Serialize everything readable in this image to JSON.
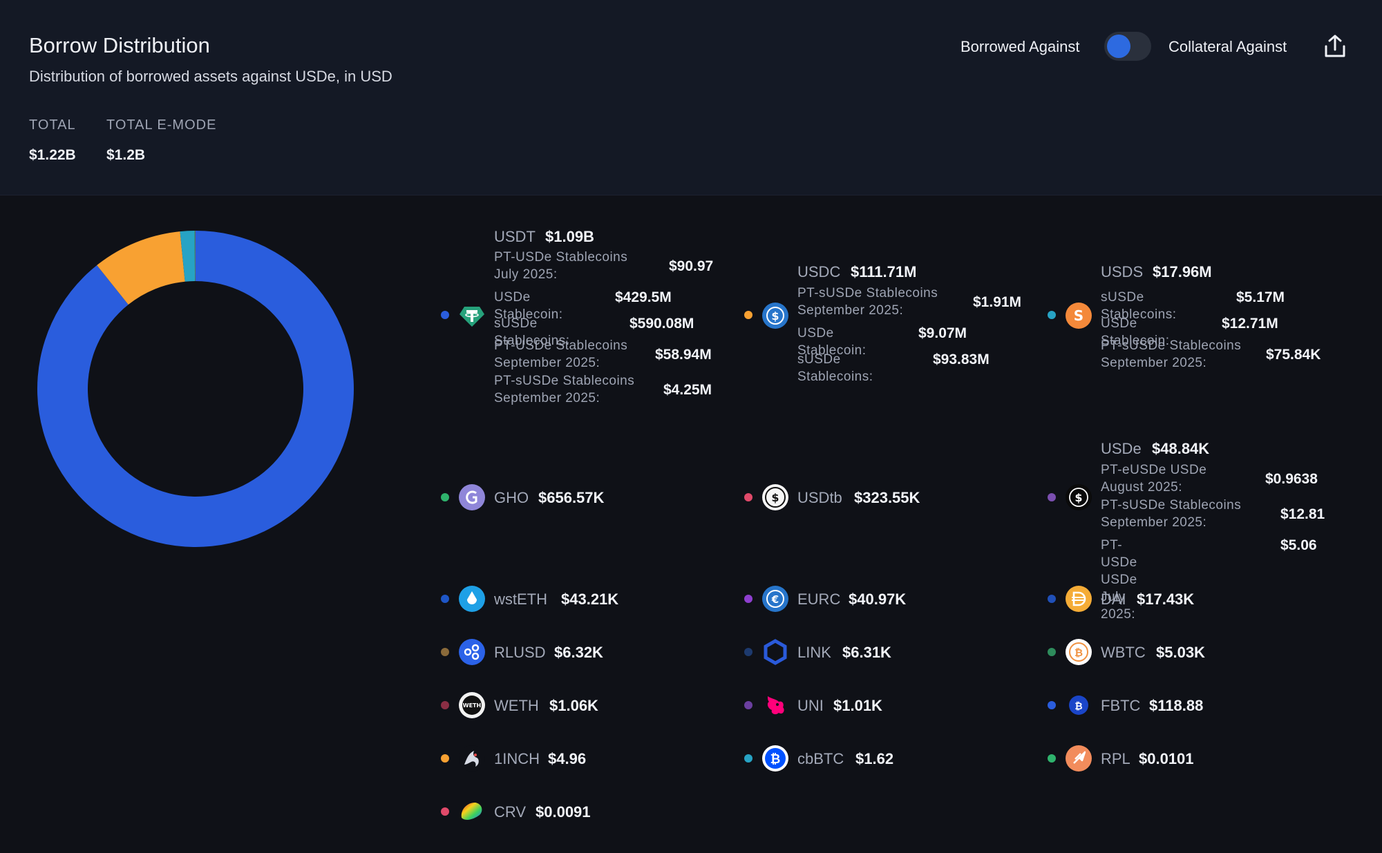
{
  "header": {
    "title": "Borrow Distribution",
    "subtitle": "Distribution of borrowed assets against USDe, in USD",
    "stats": [
      {
        "label": "TOTAL",
        "value": "$1.22B"
      },
      {
        "label": "TOTAL E-MODE",
        "value": "$1.2B"
      }
    ],
    "toggle_left": "Borrowed Against",
    "toggle_right": "Collateral Against",
    "toggle_active": "Borrowed Against"
  },
  "colors": {
    "usdt": "#2a5ddd",
    "usdc": "#f8a132",
    "usds": "#27a3c4",
    "gho": "#2fb36d",
    "usdtb": "#e04a6a",
    "usde": "#7b4fb0"
  },
  "chart_data": {
    "type": "pie",
    "donut": true,
    "slices": [
      {
        "name": "USDT",
        "value": 1090000000,
        "color": "#2a5ddd"
      },
      {
        "name": "USDC",
        "value": 111710000,
        "color": "#f8a132"
      },
      {
        "name": "USDS",
        "value": 17960000,
        "color": "#27a3c4"
      },
      {
        "name": "GHO",
        "value": 656570,
        "color": "#2fb36d"
      },
      {
        "name": "USDtb",
        "value": 323550,
        "color": "#e04a6a"
      },
      {
        "name": "USDe",
        "value": 48840,
        "color": "#7b4fb0"
      },
      {
        "name": "wstETH",
        "value": 43210,
        "color": "#1e56c7"
      },
      {
        "name": "EURC",
        "value": 40970,
        "color": "#8e3fcf"
      },
      {
        "name": "DAI",
        "value": 17430,
        "color": "#2050b8"
      },
      {
        "name": "RLUSD",
        "value": 6320,
        "color": "#8a6a3a"
      },
      {
        "name": "LINK",
        "value": 6310,
        "color": "#1d3a6e"
      },
      {
        "name": "WBTC",
        "value": 5030,
        "color": "#2e8c5c"
      },
      {
        "name": "WETH",
        "value": 1060,
        "color": "#8a2e44"
      },
      {
        "name": "UNI",
        "value": 1010,
        "color": "#6b3fa0"
      },
      {
        "name": "FBTC",
        "value": 118.88,
        "color": "#2a5ddd"
      },
      {
        "name": "1INCH",
        "value": 4.96,
        "color": "#f8a132"
      },
      {
        "name": "cbBTC",
        "value": 1.62,
        "color": "#27a3c4"
      },
      {
        "name": "RPL",
        "value": 0.0101,
        "color": "#2fb36d"
      },
      {
        "name": "CRV",
        "value": 0.0091,
        "color": "#e04a6a"
      }
    ]
  },
  "legend": {
    "usdt": {
      "symbol": "USDT",
      "amount": "$1.09B",
      "breakdown": [
        {
          "label": "PT-USDe Stablecoins July 2025:",
          "value": "$90.97"
        },
        {
          "label": "USDe Stablecoin:",
          "value": "$429.5M"
        },
        {
          "label": "sUSDe Stablecoins:",
          "value": "$590.08M"
        },
        {
          "label": "PT-USDe Stablecoins September 2025:",
          "value": "$58.94M"
        },
        {
          "label": "PT-sUSDe Stablecoins September 2025:",
          "value": "$4.25M"
        }
      ]
    },
    "usdc": {
      "symbol": "USDC",
      "amount": "$111.71M",
      "breakdown": [
        {
          "label": "PT-sUSDe Stablecoins September 2025:",
          "value": "$1.91M"
        },
        {
          "label": "USDe Stablecoin:",
          "value": "$9.07M"
        },
        {
          "label": "sUSDe Stablecoins:",
          "value": "$93.83M"
        }
      ]
    },
    "usds": {
      "symbol": "USDS",
      "amount": "$17.96M",
      "breakdown": [
        {
          "label": "sUSDe Stablecoins:",
          "value": "$5.17M"
        },
        {
          "label": "USDe Stablecoin:",
          "value": "$12.71M"
        },
        {
          "label": "PT-sUSDe Stablecoins September 2025:",
          "value": "$75.84K"
        }
      ]
    },
    "gho": {
      "symbol": "GHO",
      "amount": "$656.57K"
    },
    "usdtb": {
      "symbol": "USDtb",
      "amount": "$323.55K"
    },
    "usde": {
      "symbol": "USDe",
      "amount": "$48.84K",
      "breakdown": [
        {
          "label": "PT-eUSDe USDe August 2025:",
          "value": "$0.9638"
        },
        {
          "label": "PT-sUSDe Stablecoins September 2025:",
          "value": "$12.81"
        },
        {
          "label": "PT-USDe USDe July 2025:",
          "value": "$5.06"
        }
      ]
    },
    "wsteth": {
      "symbol": "wstETH",
      "amount": "$43.21K"
    },
    "eurc": {
      "symbol": "EURC",
      "amount": "$40.97K"
    },
    "dai": {
      "symbol": "DAI",
      "amount": "$17.43K"
    },
    "rlusd": {
      "symbol": "RLUSD",
      "amount": "$6.32K"
    },
    "link": {
      "symbol": "LINK",
      "amount": "$6.31K"
    },
    "wbtc": {
      "symbol": "WBTC",
      "amount": "$5.03K"
    },
    "weth": {
      "symbol": "WETH",
      "amount": "$1.06K"
    },
    "uni": {
      "symbol": "UNI",
      "amount": "$1.01K"
    },
    "fbtc": {
      "symbol": "FBTC",
      "amount": "$118.88"
    },
    "oneinch": {
      "symbol": "1INCH",
      "amount": "$4.96"
    },
    "cbbtc": {
      "symbol": "cbBTC",
      "amount": "$1.62"
    },
    "rpl": {
      "symbol": "RPL",
      "amount": "$0.0101"
    },
    "crv": {
      "symbol": "CRV",
      "amount": "$0.0091"
    }
  }
}
